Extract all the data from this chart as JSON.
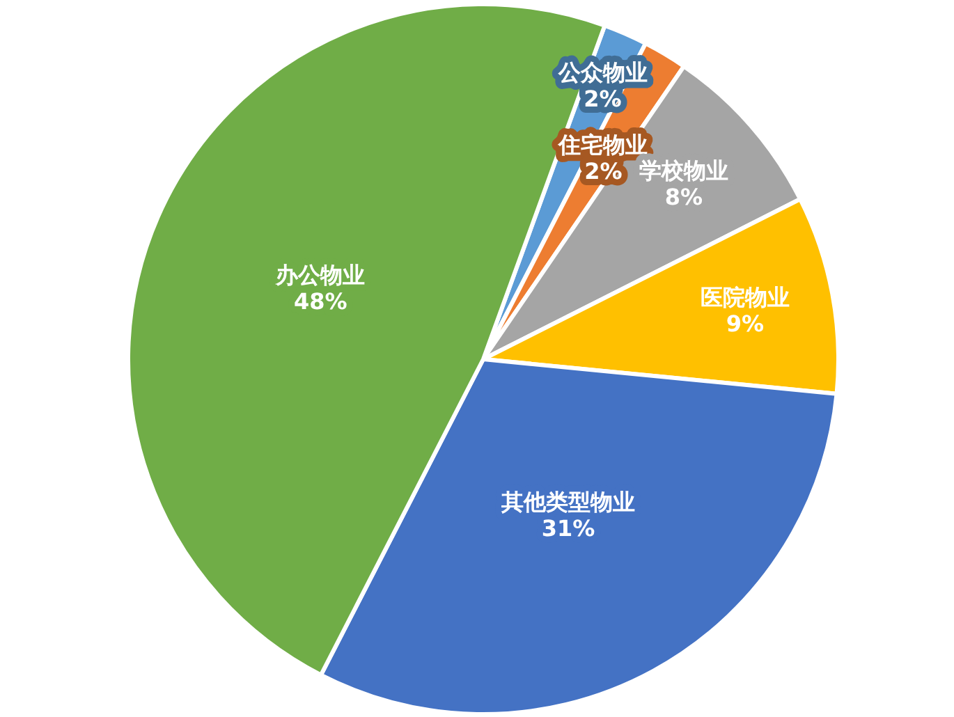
{
  "chart_data": {
    "type": "pie",
    "categories": [
      "公众物业",
      "住宅物业",
      "学校物业",
      "医院物业",
      "其他类型物业",
      "办公物业"
    ],
    "values": [
      2,
      2,
      8,
      9,
      31,
      48
    ],
    "colors": [
      "#5b9bd5",
      "#ed7d31",
      "#a5a5a5",
      "#ffc000",
      "#4472c4",
      "#70ad47"
    ],
    "value_labels": [
      "2%",
      "2%",
      "8%",
      "9%",
      "31%",
      "48%"
    ]
  }
}
